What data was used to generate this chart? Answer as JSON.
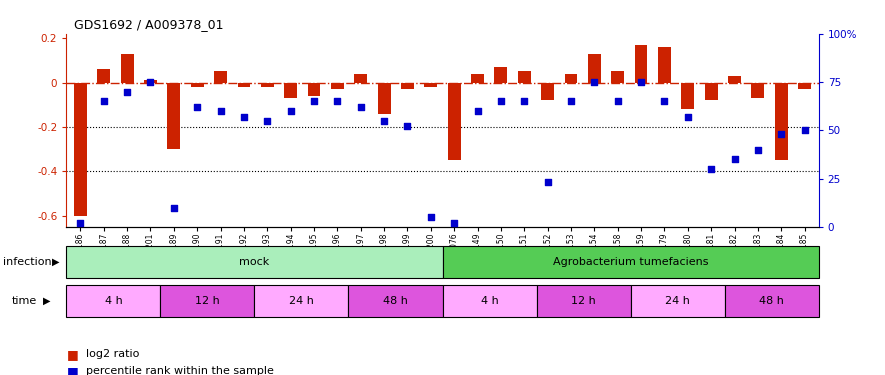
{
  "title": "GDS1692 / A009378_01",
  "samples": [
    "GSM94186",
    "GSM94187",
    "GSM94188",
    "GSM94201",
    "GSM94189",
    "GSM94190",
    "GSM94191",
    "GSM94192",
    "GSM94193",
    "GSM94194",
    "GSM94195",
    "GSM94196",
    "GSM94197",
    "GSM94198",
    "GSM94199",
    "GSM94200",
    "GSM94076",
    "GSM94149",
    "GSM94150",
    "GSM94151",
    "GSM94152",
    "GSM94153",
    "GSM94154",
    "GSM94158",
    "GSM94159",
    "GSM94179",
    "GSM94180",
    "GSM94181",
    "GSM94182",
    "GSM94183",
    "GSM94184",
    "GSM94185"
  ],
  "log2_ratio": [
    -0.6,
    0.06,
    0.13,
    0.01,
    -0.3,
    -0.02,
    0.05,
    -0.02,
    -0.02,
    -0.07,
    -0.06,
    -0.03,
    0.04,
    -0.14,
    -0.03,
    -0.02,
    -0.35,
    0.04,
    0.07,
    0.05,
    -0.08,
    0.04,
    0.13,
    0.05,
    0.17,
    0.16,
    -0.12,
    -0.08,
    0.03,
    -0.07,
    -0.35,
    -0.03
  ],
  "percentile": [
    2,
    65,
    70,
    75,
    10,
    62,
    60,
    57,
    55,
    60,
    65,
    65,
    62,
    55,
    52,
    5,
    2,
    60,
    65,
    65,
    23,
    65,
    75,
    65,
    75,
    65,
    57,
    30,
    35,
    40,
    48,
    50
  ],
  "infection_groups": [
    {
      "label": "mock",
      "start": 0,
      "end": 16,
      "color": "#aaeebb"
    },
    {
      "label": "Agrobacterium tumefaciens",
      "start": 16,
      "end": 32,
      "color": "#55cc55"
    }
  ],
  "time_groups": [
    {
      "label": "4 h",
      "start": 0,
      "end": 4,
      "color": "#ffaaff"
    },
    {
      "label": "12 h",
      "start": 4,
      "end": 8,
      "color": "#dd55dd"
    },
    {
      "label": "24 h",
      "start": 8,
      "end": 12,
      "color": "#ffaaff"
    },
    {
      "label": "48 h",
      "start": 12,
      "end": 16,
      "color": "#dd55dd"
    },
    {
      "label": "4 h",
      "start": 16,
      "end": 20,
      "color": "#ffaaff"
    },
    {
      "label": "12 h",
      "start": 20,
      "end": 24,
      "color": "#dd55dd"
    },
    {
      "label": "24 h",
      "start": 24,
      "end": 28,
      "color": "#ffaaff"
    },
    {
      "label": "48 h",
      "start": 28,
      "end": 32,
      "color": "#dd55dd"
    }
  ],
  "bar_color": "#cc2200",
  "dot_color": "#0000cc",
  "hline_color": "#cc2200",
  "ylim_left": [
    -0.65,
    0.22
  ],
  "ylim_right": [
    0,
    100
  ],
  "yticks_left": [
    -0.6,
    -0.4,
    -0.2,
    0.0,
    0.2
  ],
  "ytick_labels_left": [
    "-0.6",
    "-0.4",
    "-0.2",
    "0",
    "0.2"
  ],
  "yticks_right": [
    0,
    25,
    50,
    75,
    100
  ],
  "ytick_labels_right": [
    "0",
    "25",
    "50",
    "75",
    "100%"
  ],
  "legend_items": [
    {
      "color": "#cc2200",
      "label": "log2 ratio"
    },
    {
      "color": "#0000cc",
      "label": "percentile rank within the sample"
    }
  ],
  "background_color": "#ffffff"
}
